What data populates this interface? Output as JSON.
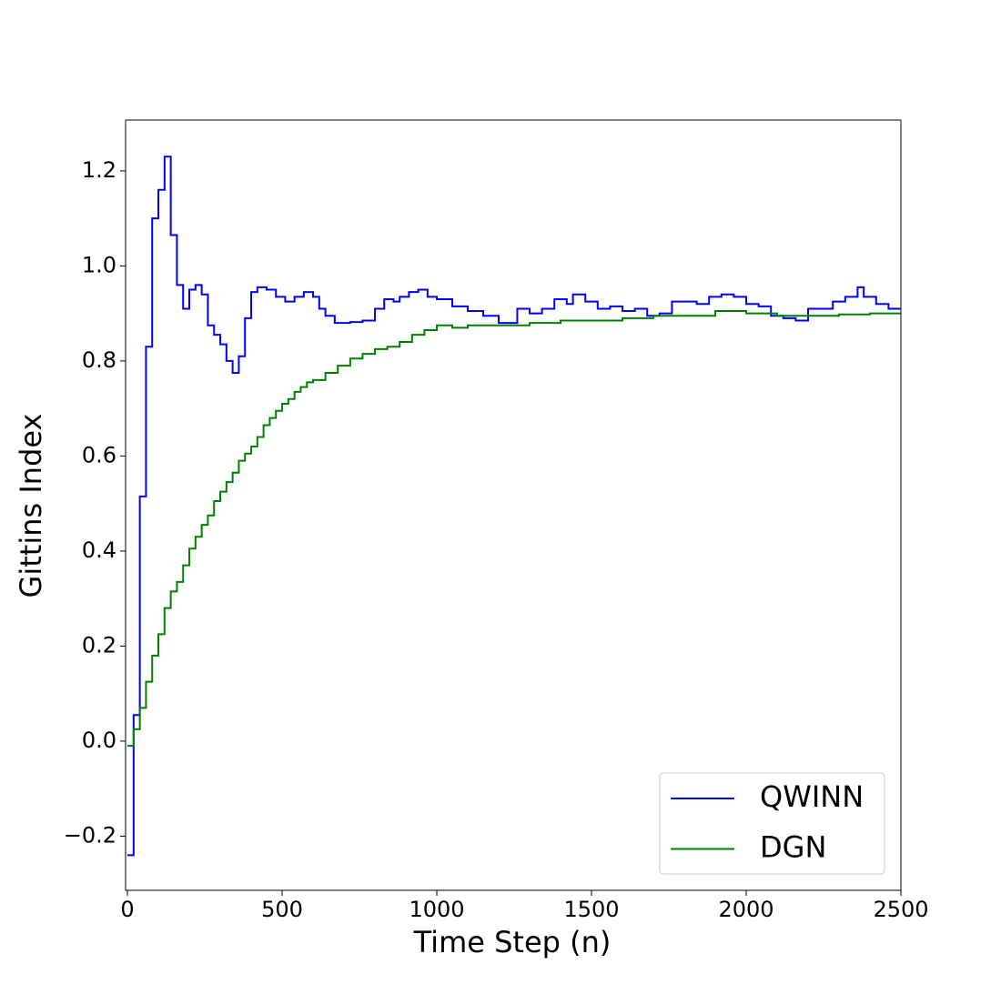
{
  "chart_data": {
    "type": "step",
    "xlabel": "Time Step (n)",
    "ylabel": "Gittins Index",
    "xlim": [
      -6,
      2500
    ],
    "ylim": [
      -0.314,
      1.307
    ],
    "xticks": [
      0,
      500,
      1000,
      1500,
      2000,
      2500
    ],
    "yticks": [
      {
        "value": -0.2,
        "label": "−0.2"
      },
      {
        "value": 0,
        "label": "0.0"
      },
      {
        "value": 0.2,
        "label": "0.2"
      },
      {
        "value": 0.4,
        "label": "0.4"
      },
      {
        "value": 0.6,
        "label": "0.6"
      },
      {
        "value": 0.8,
        "label": "0.8"
      },
      {
        "value": 1.0,
        "label": "1.0"
      },
      {
        "value": 1.2,
        "label": "1.2"
      }
    ],
    "legend": "lower right",
    "series": [
      {
        "name": "QWINN",
        "color": "#0000ff",
        "x": [
          0,
          20,
          40,
          60,
          80,
          100,
          120,
          140,
          160,
          180,
          200,
          220,
          240,
          260,
          280,
          300,
          320,
          340,
          360,
          380,
          400,
          420,
          450,
          480,
          510,
          540,
          570,
          600,
          620,
          640,
          670,
          720,
          760,
          800,
          830,
          860,
          880,
          910,
          940,
          970,
          1000,
          1050,
          1100,
          1150,
          1200,
          1240,
          1260,
          1300,
          1340,
          1380,
          1420,
          1440,
          1480,
          1520,
          1560,
          1600,
          1640,
          1680,
          1720,
          1760,
          1800,
          1840,
          1880,
          1920,
          1960,
          2000,
          2040,
          2080,
          2120,
          2160,
          2200,
          2240,
          2280,
          2320,
          2360,
          2380,
          2420,
          2460,
          2500
        ],
        "values": [
          -0.24,
          0.055,
          0.515,
          0.83,
          1.1,
          1.16,
          1.23,
          1.065,
          0.96,
          0.91,
          0.95,
          0.96,
          0.94,
          0.875,
          0.855,
          0.835,
          0.8,
          0.775,
          0.81,
          0.89,
          0.945,
          0.955,
          0.95,
          0.935,
          0.925,
          0.935,
          0.945,
          0.935,
          0.91,
          0.895,
          0.88,
          0.882,
          0.885,
          0.91,
          0.93,
          0.925,
          0.935,
          0.945,
          0.95,
          0.935,
          0.93,
          0.915,
          0.905,
          0.895,
          0.88,
          0.88,
          0.91,
          0.9,
          0.91,
          0.93,
          0.92,
          0.94,
          0.925,
          0.91,
          0.915,
          0.905,
          0.91,
          0.895,
          0.9,
          0.925,
          0.925,
          0.92,
          0.935,
          0.94,
          0.935,
          0.92,
          0.915,
          0.895,
          0.89,
          0.885,
          0.91,
          0.91,
          0.925,
          0.935,
          0.955,
          0.935,
          0.92,
          0.91,
          0.91
        ]
      },
      {
        "name": "DGN",
        "color": "#008000",
        "x": [
          0,
          20,
          40,
          60,
          80,
          100,
          120,
          140,
          160,
          180,
          200,
          220,
          240,
          260,
          280,
          300,
          320,
          340,
          360,
          380,
          400,
          420,
          440,
          460,
          480,
          500,
          520,
          540,
          560,
          580,
          600,
          640,
          680,
          720,
          760,
          800,
          840,
          880,
          920,
          960,
          1000,
          1050,
          1100,
          1200,
          1300,
          1400,
          1500,
          1600,
          1700,
          1800,
          1900,
          2000,
          2100,
          2200,
          2300,
          2400,
          2500
        ],
        "values": [
          -0.01,
          0.025,
          0.07,
          0.125,
          0.18,
          0.225,
          0.28,
          0.315,
          0.335,
          0.37,
          0.405,
          0.43,
          0.455,
          0.475,
          0.505,
          0.525,
          0.545,
          0.565,
          0.59,
          0.605,
          0.62,
          0.64,
          0.665,
          0.68,
          0.695,
          0.71,
          0.72,
          0.735,
          0.745,
          0.755,
          0.76,
          0.775,
          0.79,
          0.805,
          0.815,
          0.825,
          0.83,
          0.84,
          0.855,
          0.865,
          0.875,
          0.87,
          0.875,
          0.875,
          0.88,
          0.885,
          0.885,
          0.89,
          0.895,
          0.895,
          0.905,
          0.9,
          0.895,
          0.895,
          0.898,
          0.9,
          0.9
        ]
      }
    ]
  }
}
